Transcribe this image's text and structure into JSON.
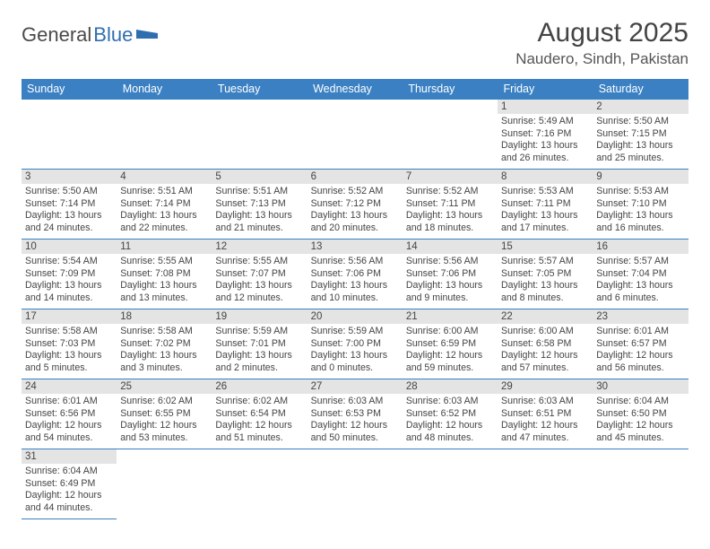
{
  "brand": {
    "dark": "General",
    "blue": "Blue"
  },
  "title": "August 2025",
  "location": "Naudero, Sindh, Pakistan",
  "colors": {
    "header_bg": "#3a80c3",
    "header_text": "#ffffff",
    "daynum_bg": "#e4e4e4",
    "rule": "#3a80c3",
    "brand_blue": "#2f6fb0",
    "text": "#444444"
  },
  "weekdays": [
    "Sunday",
    "Monday",
    "Tuesday",
    "Wednesday",
    "Thursday",
    "Friday",
    "Saturday"
  ],
  "first_weekday_index": 5,
  "days": [
    {
      "n": 1,
      "sunrise": "5:49 AM",
      "sunset": "7:16 PM",
      "dl_h": 13,
      "dl_m": 26
    },
    {
      "n": 2,
      "sunrise": "5:50 AM",
      "sunset": "7:15 PM",
      "dl_h": 13,
      "dl_m": 25
    },
    {
      "n": 3,
      "sunrise": "5:50 AM",
      "sunset": "7:14 PM",
      "dl_h": 13,
      "dl_m": 24
    },
    {
      "n": 4,
      "sunrise": "5:51 AM",
      "sunset": "7:14 PM",
      "dl_h": 13,
      "dl_m": 22
    },
    {
      "n": 5,
      "sunrise": "5:51 AM",
      "sunset": "7:13 PM",
      "dl_h": 13,
      "dl_m": 21
    },
    {
      "n": 6,
      "sunrise": "5:52 AM",
      "sunset": "7:12 PM",
      "dl_h": 13,
      "dl_m": 20
    },
    {
      "n": 7,
      "sunrise": "5:52 AM",
      "sunset": "7:11 PM",
      "dl_h": 13,
      "dl_m": 18
    },
    {
      "n": 8,
      "sunrise": "5:53 AM",
      "sunset": "7:11 PM",
      "dl_h": 13,
      "dl_m": 17
    },
    {
      "n": 9,
      "sunrise": "5:53 AM",
      "sunset": "7:10 PM",
      "dl_h": 13,
      "dl_m": 16
    },
    {
      "n": 10,
      "sunrise": "5:54 AM",
      "sunset": "7:09 PM",
      "dl_h": 13,
      "dl_m": 14
    },
    {
      "n": 11,
      "sunrise": "5:55 AM",
      "sunset": "7:08 PM",
      "dl_h": 13,
      "dl_m": 13
    },
    {
      "n": 12,
      "sunrise": "5:55 AM",
      "sunset": "7:07 PM",
      "dl_h": 13,
      "dl_m": 12
    },
    {
      "n": 13,
      "sunrise": "5:56 AM",
      "sunset": "7:06 PM",
      "dl_h": 13,
      "dl_m": 10
    },
    {
      "n": 14,
      "sunrise": "5:56 AM",
      "sunset": "7:06 PM",
      "dl_h": 13,
      "dl_m": 9
    },
    {
      "n": 15,
      "sunrise": "5:57 AM",
      "sunset": "7:05 PM",
      "dl_h": 13,
      "dl_m": 8
    },
    {
      "n": 16,
      "sunrise": "5:57 AM",
      "sunset": "7:04 PM",
      "dl_h": 13,
      "dl_m": 6
    },
    {
      "n": 17,
      "sunrise": "5:58 AM",
      "sunset": "7:03 PM",
      "dl_h": 13,
      "dl_m": 5
    },
    {
      "n": 18,
      "sunrise": "5:58 AM",
      "sunset": "7:02 PM",
      "dl_h": 13,
      "dl_m": 3
    },
    {
      "n": 19,
      "sunrise": "5:59 AM",
      "sunset": "7:01 PM",
      "dl_h": 13,
      "dl_m": 2
    },
    {
      "n": 20,
      "sunrise": "5:59 AM",
      "sunset": "7:00 PM",
      "dl_h": 13,
      "dl_m": 0
    },
    {
      "n": 21,
      "sunrise": "6:00 AM",
      "sunset": "6:59 PM",
      "dl_h": 12,
      "dl_m": 59
    },
    {
      "n": 22,
      "sunrise": "6:00 AM",
      "sunset": "6:58 PM",
      "dl_h": 12,
      "dl_m": 57
    },
    {
      "n": 23,
      "sunrise": "6:01 AM",
      "sunset": "6:57 PM",
      "dl_h": 12,
      "dl_m": 56
    },
    {
      "n": 24,
      "sunrise": "6:01 AM",
      "sunset": "6:56 PM",
      "dl_h": 12,
      "dl_m": 54
    },
    {
      "n": 25,
      "sunrise": "6:02 AM",
      "sunset": "6:55 PM",
      "dl_h": 12,
      "dl_m": 53
    },
    {
      "n": 26,
      "sunrise": "6:02 AM",
      "sunset": "6:54 PM",
      "dl_h": 12,
      "dl_m": 51
    },
    {
      "n": 27,
      "sunrise": "6:03 AM",
      "sunset": "6:53 PM",
      "dl_h": 12,
      "dl_m": 50
    },
    {
      "n": 28,
      "sunrise": "6:03 AM",
      "sunset": "6:52 PM",
      "dl_h": 12,
      "dl_m": 48
    },
    {
      "n": 29,
      "sunrise": "6:03 AM",
      "sunset": "6:51 PM",
      "dl_h": 12,
      "dl_m": 47
    },
    {
      "n": 30,
      "sunrise": "6:04 AM",
      "sunset": "6:50 PM",
      "dl_h": 12,
      "dl_m": 45
    },
    {
      "n": 31,
      "sunrise": "6:04 AM",
      "sunset": "6:49 PM",
      "dl_h": 12,
      "dl_m": 44
    }
  ],
  "labels": {
    "sunrise": "Sunrise:",
    "sunset": "Sunset:",
    "daylight": "Daylight:",
    "hours": "hours",
    "and": "and",
    "minutes": "minutes."
  }
}
